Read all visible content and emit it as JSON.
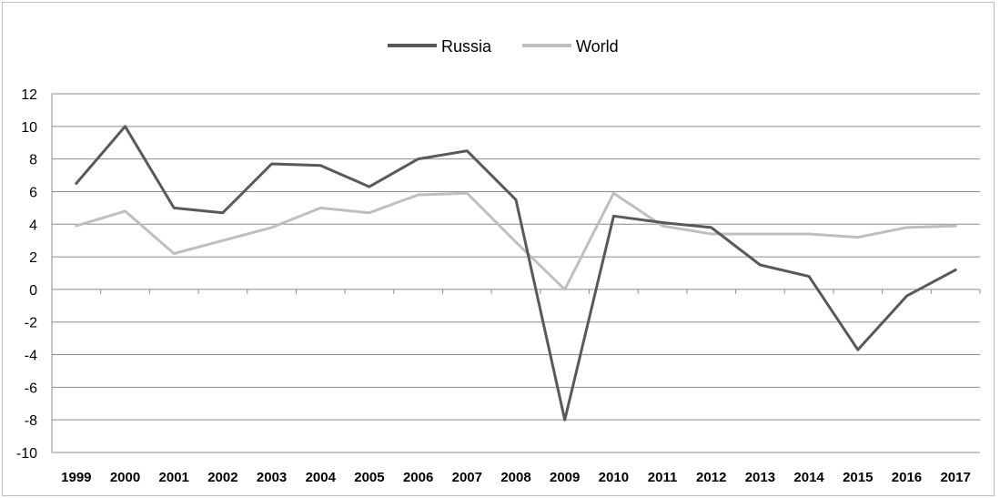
{
  "chart_data": {
    "type": "line",
    "categories": [
      "1999",
      "2000",
      "2001",
      "2002",
      "2003",
      "2004",
      "2005",
      "2006",
      "2007",
      "2008",
      "2009",
      "2010",
      "2011",
      "2012",
      "2013",
      "2014",
      "2015",
      "2016",
      "2017"
    ],
    "series": [
      {
        "name": "Russia",
        "color": "#595959",
        "values": [
          6.5,
          10.0,
          5.0,
          4.7,
          7.7,
          7.6,
          6.3,
          8.0,
          8.5,
          5.5,
          -8.0,
          4.5,
          4.1,
          3.8,
          1.5,
          0.8,
          -3.7,
          -0.4,
          1.2
        ]
      },
      {
        "name": "World",
        "color": "#bfbfbf",
        "values": [
          3.9,
          4.8,
          2.2,
          3.0,
          3.8,
          5.0,
          4.7,
          5.8,
          5.9,
          2.9,
          0.0,
          5.9,
          3.9,
          3.4,
          3.4,
          3.4,
          3.2,
          3.8,
          3.9
        ]
      }
    ],
    "yticks": [
      "12",
      "10",
      "8",
      "6",
      "4",
      "2",
      "0",
      "-2",
      "-4",
      "-6",
      "-8",
      "-10"
    ],
    "ylim": [
      -10,
      12
    ],
    "ytick_step": 2,
    "grid": true,
    "legend_position": "top-center"
  }
}
